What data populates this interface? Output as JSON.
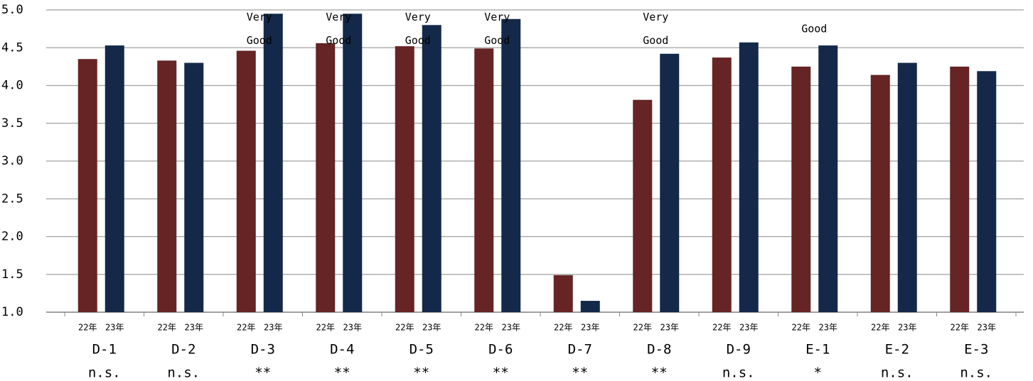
{
  "chart_data": {
    "type": "bar",
    "categories": [
      "D-1",
      "D-2",
      "D-3",
      "D-4",
      "D-5",
      "D-6",
      "D-7",
      "D-8",
      "D-9",
      "E-1",
      "E-2",
      "E-3"
    ],
    "series": [
      {
        "name": "22年",
        "color": "#662424",
        "values": [
          4.35,
          4.33,
          4.46,
          4.56,
          4.52,
          4.49,
          1.49,
          3.81,
          4.37,
          4.25,
          4.14,
          4.25
        ]
      },
      {
        "name": "23年",
        "color": "#14294a",
        "values": [
          4.53,
          4.3,
          4.95,
          4.95,
          4.8,
          4.88,
          1.15,
          4.42,
          4.57,
          4.53,
          4.3,
          4.19
        ]
      }
    ],
    "bar_labels": [
      null,
      null,
      [
        "Very",
        "Good"
      ],
      [
        "Very",
        "Good"
      ],
      [
        "Very",
        "Good"
      ],
      [
        "Very",
        "Good"
      ],
      null,
      [
        "Very",
        "Good"
      ],
      null,
      [
        "Good"
      ],
      null,
      null
    ],
    "significance": [
      "n.s.",
      "n.s.",
      "**",
      "**",
      "**",
      "**",
      "**",
      "**",
      "n.s.",
      "*",
      "n.s.",
      "n.s."
    ],
    "ylim": [
      1,
      5
    ],
    "yticks": [
      {
        "value": 1,
        "label": "1.0"
      },
      1.5,
      {
        "value": 2,
        "label": "2.0"
      },
      2.5,
      {
        "value": 3,
        "label": "3.0"
      },
      3.5,
      {
        "value": 4,
        "label": "4.0"
      },
      4.5,
      {
        "value": 5,
        "label": "5.0"
      }
    ],
    "grid": true
  }
}
